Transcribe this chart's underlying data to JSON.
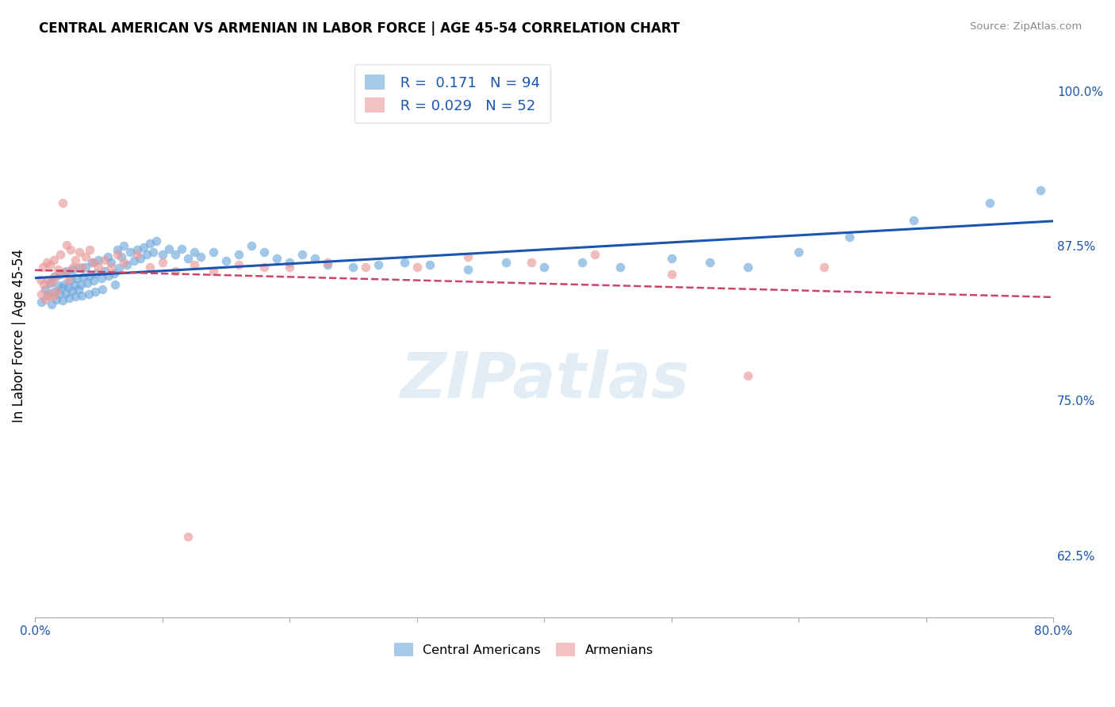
{
  "title": "CENTRAL AMERICAN VS ARMENIAN IN LABOR FORCE | AGE 45-54 CORRELATION CHART",
  "source": "Source: ZipAtlas.com",
  "ylabel": "In Labor Force | Age 45-54",
  "xmin": 0.0,
  "xmax": 0.8,
  "ymin": 0.575,
  "ymax": 1.03,
  "yticks": [
    0.625,
    0.75,
    0.875,
    1.0
  ],
  "ytick_labels": [
    "62.5%",
    "75.0%",
    "87.5%",
    "100.0%"
  ],
  "xticks": [
    0.0,
    0.1,
    0.2,
    0.3,
    0.4,
    0.5,
    0.6,
    0.7,
    0.8
  ],
  "xtick_labels": [
    "0.0%",
    "",
    "",
    "",
    "",
    "",
    "",
    "",
    "80.0%"
  ],
  "legend_r1": "R =  0.171",
  "legend_n1": "N = 94",
  "legend_r2": "R = 0.029",
  "legend_n2": "N = 52",
  "blue_color": "#6fa8dc",
  "pink_dot_color": "#ea9999",
  "trendline_blue": "#1a56b0",
  "trendline_pink": "#cc4466",
  "watermark": "ZIPatlas",
  "blue_scatter_x": [
    0.005,
    0.008,
    0.01,
    0.012,
    0.013,
    0.015,
    0.015,
    0.017,
    0.018,
    0.019,
    0.02,
    0.021,
    0.022,
    0.023,
    0.024,
    0.025,
    0.026,
    0.027,
    0.028,
    0.029,
    0.03,
    0.031,
    0.032,
    0.033,
    0.034,
    0.035,
    0.036,
    0.037,
    0.038,
    0.04,
    0.041,
    0.042,
    0.043,
    0.045,
    0.046,
    0.047,
    0.048,
    0.05,
    0.052,
    0.053,
    0.055,
    0.057,
    0.058,
    0.06,
    0.062,
    0.063,
    0.065,
    0.066,
    0.068,
    0.07,
    0.072,
    0.075,
    0.078,
    0.08,
    0.083,
    0.085,
    0.088,
    0.09,
    0.093,
    0.095,
    0.1,
    0.105,
    0.11,
    0.115,
    0.12,
    0.125,
    0.13,
    0.14,
    0.15,
    0.16,
    0.17,
    0.18,
    0.19,
    0.2,
    0.21,
    0.22,
    0.23,
    0.25,
    0.27,
    0.29,
    0.31,
    0.34,
    0.37,
    0.4,
    0.43,
    0.46,
    0.5,
    0.53,
    0.56,
    0.6,
    0.64,
    0.69,
    0.75,
    0.79
  ],
  "blue_scatter_y": [
    0.83,
    0.84,
    0.835,
    0.845,
    0.828,
    0.85,
    0.838,
    0.832,
    0.843,
    0.836,
    0.852,
    0.841,
    0.831,
    0.844,
    0.837,
    0.855,
    0.842,
    0.833,
    0.848,
    0.839,
    0.856,
    0.843,
    0.834,
    0.849,
    0.84,
    0.857,
    0.844,
    0.835,
    0.85,
    0.858,
    0.845,
    0.836,
    0.851,
    0.862,
    0.847,
    0.838,
    0.853,
    0.864,
    0.849,
    0.84,
    0.855,
    0.866,
    0.851,
    0.862,
    0.853,
    0.844,
    0.872,
    0.857,
    0.866,
    0.875,
    0.86,
    0.87,
    0.863,
    0.872,
    0.865,
    0.874,
    0.868,
    0.877,
    0.87,
    0.879,
    0.868,
    0.873,
    0.868,
    0.873,
    0.865,
    0.87,
    0.866,
    0.87,
    0.863,
    0.868,
    0.875,
    0.87,
    0.865,
    0.862,
    0.868,
    0.865,
    0.86,
    0.858,
    0.86,
    0.862,
    0.86,
    0.856,
    0.862,
    0.858,
    0.862,
    0.858,
    0.865,
    0.862,
    0.858,
    0.87,
    0.882,
    0.896,
    0.91,
    0.92
  ],
  "pink_scatter_x": [
    0.004,
    0.005,
    0.006,
    0.007,
    0.008,
    0.009,
    0.01,
    0.011,
    0.012,
    0.013,
    0.014,
    0.015,
    0.016,
    0.017,
    0.018,
    0.02,
    0.022,
    0.023,
    0.025,
    0.026,
    0.028,
    0.03,
    0.032,
    0.035,
    0.037,
    0.04,
    0.043,
    0.046,
    0.05,
    0.055,
    0.06,
    0.065,
    0.07,
    0.08,
    0.09,
    0.1,
    0.11,
    0.125,
    0.14,
    0.16,
    0.18,
    0.2,
    0.23,
    0.26,
    0.3,
    0.34,
    0.39,
    0.44,
    0.5,
    0.56,
    0.62,
    0.12
  ],
  "pink_scatter_y": [
    0.848,
    0.836,
    0.858,
    0.844,
    0.832,
    0.862,
    0.848,
    0.836,
    0.86,
    0.846,
    0.834,
    0.864,
    0.85,
    0.838,
    0.856,
    0.868,
    0.91,
    0.854,
    0.876,
    0.848,
    0.872,
    0.858,
    0.864,
    0.87,
    0.858,
    0.866,
    0.872,
    0.862,
    0.858,
    0.864,
    0.858,
    0.868,
    0.862,
    0.868,
    0.858,
    0.862,
    0.855,
    0.86,
    0.855,
    0.86,
    0.858,
    0.858,
    0.862,
    0.858,
    0.858,
    0.866,
    0.862,
    0.868,
    0.852,
    0.77,
    0.858,
    0.64
  ]
}
